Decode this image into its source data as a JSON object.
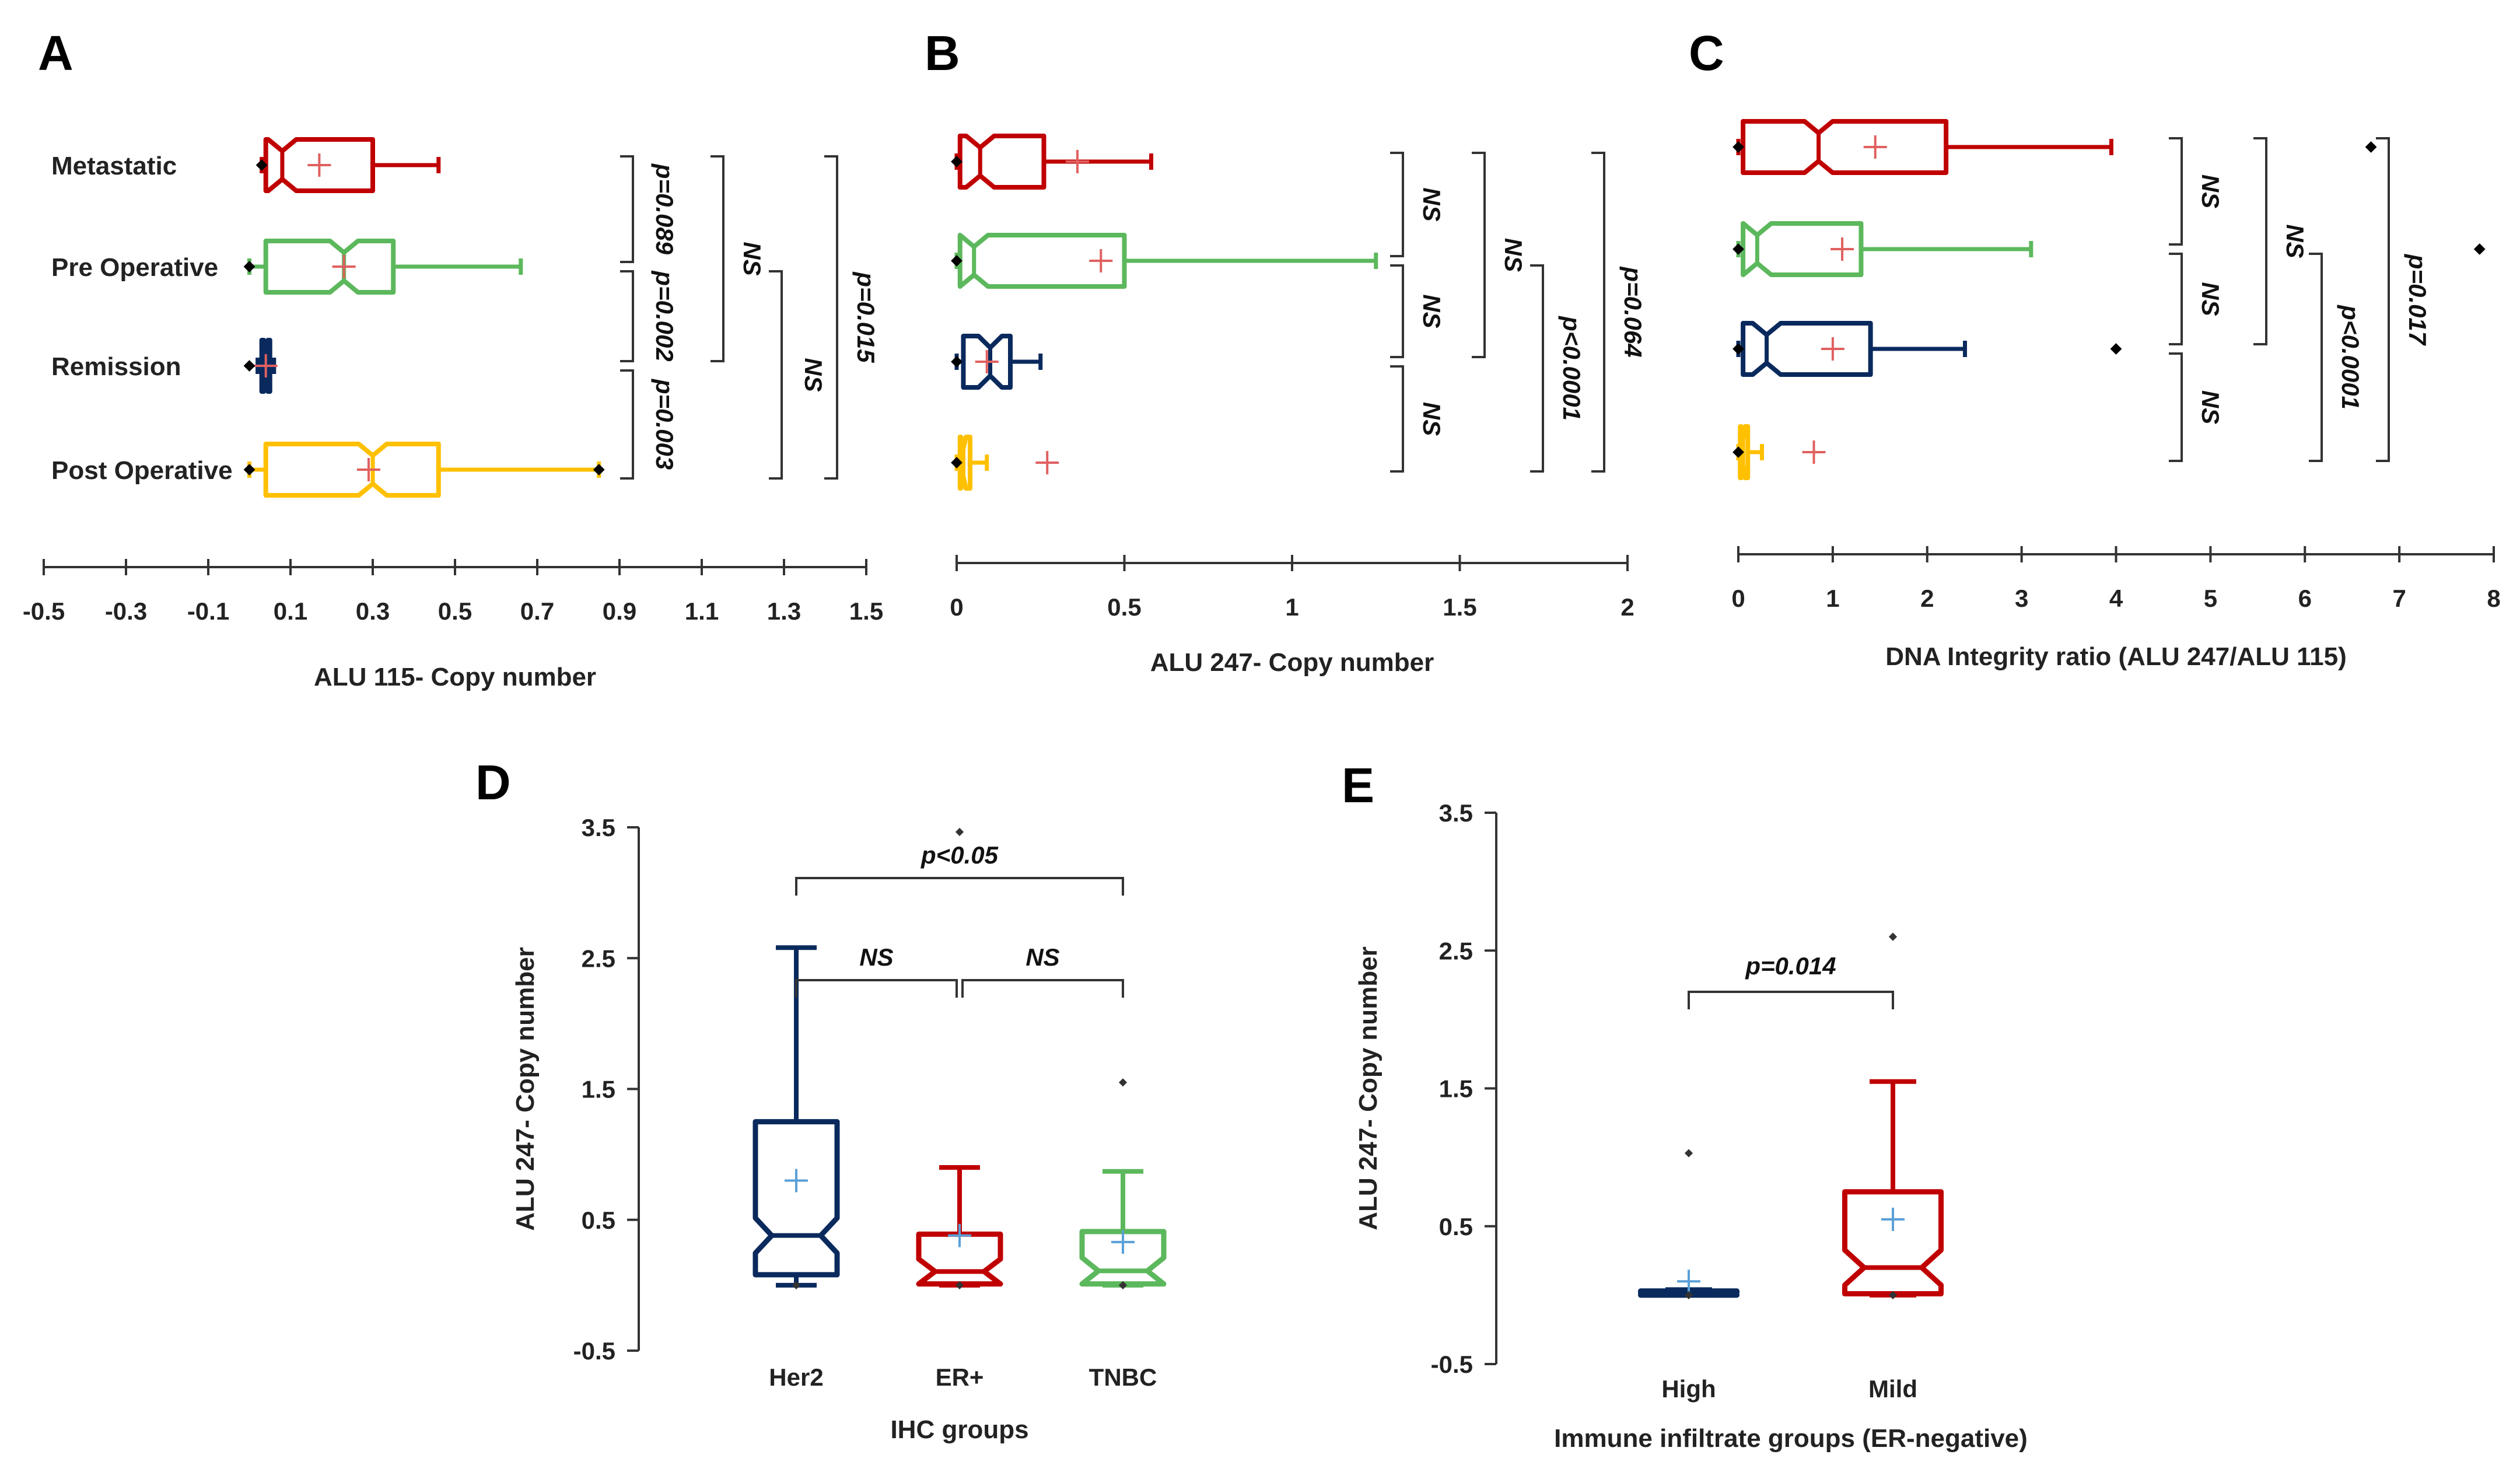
{
  "colors": {
    "red": "#c00000",
    "green": "#5cb85c",
    "navy": "#0a2a5e",
    "gold": "#ffc000",
    "mean_red": "#e06060",
    "mean_blue": "#5aa0d8",
    "axis": "#333333"
  },
  "chart_data": [
    {
      "panel": "A",
      "type": "boxplot",
      "orientation": "horizontal",
      "xlabel": "ALU 115- Copy number",
      "xlim": [
        -0.5,
        1.5
      ],
      "ticks": [
        "-0.5",
        "-0.3",
        "-0.1",
        "0.1",
        "0.3",
        "0.5",
        "0.7",
        "0.9",
        "1.1",
        "1.3",
        "1.5"
      ],
      "categories": [
        "Metastatic",
        "Pre Operative",
        "Remission",
        "Post Operative"
      ],
      "boxes": [
        {
          "name": "Metastatic",
          "color": "red",
          "min": 0.03,
          "q1": 0.04,
          "median": 0.08,
          "q3": 0.3,
          "max": 0.46,
          "mean": 0.17,
          "outliers": [
            0.03
          ]
        },
        {
          "name": "Pre Operative",
          "color": "green",
          "min": 0.0,
          "q1": 0.04,
          "median": 0.23,
          "q3": 0.35,
          "max": 0.66,
          "mean": 0.23,
          "outliers": [
            0.0
          ]
        },
        {
          "name": "Remission",
          "color": "navy",
          "min": 0.02,
          "q1": 0.03,
          "median": 0.04,
          "q3": 0.05,
          "max": 0.06,
          "mean": 0.04,
          "outliers": [
            0.0
          ]
        },
        {
          "name": "Post Operative",
          "color": "gold",
          "min": 0.0,
          "q1": 0.04,
          "median": 0.3,
          "q3": 0.46,
          "max": 0.85,
          "mean": 0.29,
          "outliers": [
            0.0,
            0.85
          ]
        }
      ],
      "annotations": [
        {
          "text": "p=0.089",
          "from": 0,
          "to": 1
        },
        {
          "text": "p=0.002",
          "from": 1,
          "to": 2
        },
        {
          "text": "p=0.003",
          "from": 2,
          "to": 3
        },
        {
          "text": "NS",
          "from": 0,
          "to": 2
        },
        {
          "text": "NS",
          "from": 1,
          "to": 3
        },
        {
          "text": "p=0.015",
          "from": 0,
          "to": 3
        }
      ]
    },
    {
      "panel": "B",
      "type": "boxplot",
      "orientation": "horizontal",
      "xlabel": "ALU 247- Copy number",
      "xlim": [
        0,
        2
      ],
      "ticks": [
        "0",
        "0.5",
        "1",
        "1.5",
        "2"
      ],
      "boxes": [
        {
          "name": "Metastatic",
          "color": "red",
          "min": 0.0,
          "q1": 0.01,
          "median": 0.07,
          "q3": 0.26,
          "max": 0.58,
          "mean": 0.36,
          "outliers": [
            0.0
          ]
        },
        {
          "name": "Pre Operative",
          "color": "green",
          "min": 0.0,
          "q1": 0.01,
          "median": 0.04,
          "q3": 0.5,
          "max": 1.25,
          "mean": 0.43,
          "outliers": [
            0.0
          ]
        },
        {
          "name": "Remission",
          "color": "navy",
          "min": 0.0,
          "q1": 0.02,
          "median": 0.1,
          "q3": 0.16,
          "max": 0.25,
          "mean": 0.09,
          "outliers": [
            0.0
          ]
        },
        {
          "name": "Post Operative",
          "color": "gold",
          "min": 0.0,
          "q1": 0.01,
          "median": 0.02,
          "q3": 0.04,
          "max": 0.09,
          "mean": 0.27,
          "outliers": [
            0.0
          ]
        }
      ],
      "annotations": [
        {
          "text": "NS",
          "from": 0,
          "to": 1
        },
        {
          "text": "NS",
          "from": 1,
          "to": 2
        },
        {
          "text": "NS",
          "from": 2,
          "to": 3
        },
        {
          "text": "NS",
          "from": 0,
          "to": 2
        },
        {
          "text": "p<0.0001",
          "from": 1,
          "to": 3
        },
        {
          "text": "p=0.064",
          "from": 0,
          "to": 3
        }
      ]
    },
    {
      "panel": "C",
      "type": "boxplot",
      "orientation": "horizontal",
      "xlabel": "DNA Integrity ratio (ALU 247/ALU 115)",
      "xlim": [
        0,
        8
      ],
      "ticks": [
        "0",
        "1",
        "2",
        "3",
        "4",
        "5",
        "6",
        "7",
        "8"
      ],
      "boxes": [
        {
          "name": "Metastatic",
          "color": "red",
          "min": 0.0,
          "q1": 0.05,
          "median": 0.85,
          "q3": 2.2,
          "max": 3.95,
          "mean": 1.45,
          "outliers": [
            0.0,
            6.7
          ]
        },
        {
          "name": "Pre Operative",
          "color": "green",
          "min": 0.0,
          "q1": 0.05,
          "median": 0.2,
          "q3": 1.3,
          "max": 3.1,
          "mean": 1.1,
          "outliers": [
            0.0,
            7.85
          ]
        },
        {
          "name": "Remission",
          "color": "navy",
          "min": 0.0,
          "q1": 0.05,
          "median": 0.3,
          "q3": 1.4,
          "max": 2.4,
          "mean": 1.0,
          "outliers": [
            0.0,
            4.0
          ]
        },
        {
          "name": "Post Operative",
          "color": "gold",
          "min": 0.0,
          "q1": 0.02,
          "median": 0.05,
          "q3": 0.1,
          "max": 0.25,
          "mean": 0.8,
          "outliers": [
            0.0
          ]
        }
      ],
      "annotations": [
        {
          "text": "NS",
          "from": 0,
          "to": 1
        },
        {
          "text": "NS",
          "from": 1,
          "to": 2
        },
        {
          "text": "NS",
          "from": 2,
          "to": 3
        },
        {
          "text": "NS",
          "from": 0,
          "to": 2
        },
        {
          "text": "p<0.0001",
          "from": 1,
          "to": 3
        },
        {
          "text": "p=0.017",
          "from": 0,
          "to": 3
        }
      ]
    },
    {
      "panel": "D",
      "type": "boxplot",
      "orientation": "vertical",
      "xlabel": "IHC groups",
      "ylabel": "ALU 247- Copy number",
      "ylim": [
        -0.5,
        3.5
      ],
      "ticks": [
        "-0.5",
        "0.5",
        "1.5",
        "2.5",
        "3.5"
      ],
      "categories": [
        "Her2",
        "ER+",
        "TNBC"
      ],
      "boxes": [
        {
          "name": "Her2",
          "color": "navy",
          "min": 0.0,
          "q1": 0.08,
          "median": 0.38,
          "q3": 1.25,
          "max": 2.58,
          "mean": 0.8,
          "outliers": [
            0.0
          ]
        },
        {
          "name": "ER+",
          "color": "red",
          "min": 0.0,
          "q1": 0.01,
          "median": 0.06,
          "q3": 0.39,
          "max": 0.9,
          "mean": 0.38,
          "outliers": [
            0.0
          ]
        },
        {
          "name": "TNBC",
          "color": "green",
          "min": 0.0,
          "q1": 0.01,
          "median": 0.06,
          "q3": 0.41,
          "max": 0.87,
          "mean": 0.33,
          "outliers": [
            0.0,
            1.55
          ]
        }
      ],
      "extra_points": [
        {
          "category": "ER+",
          "value": 3.5
        }
      ],
      "annotations": [
        {
          "text": "p<0.05",
          "from": 0,
          "to": 2
        },
        {
          "text": "NS",
          "from": 0,
          "to": 1
        },
        {
          "text": "NS",
          "from": 1,
          "to": 2
        }
      ]
    },
    {
      "panel": "E",
      "type": "boxplot",
      "orientation": "vertical",
      "xlabel": "Immune infiltrate groups (ER-negative)",
      "ylabel": "ALU 247- Copy number",
      "ylim": [
        -0.5,
        3.5
      ],
      "ticks": [
        "-0.5",
        "0.5",
        "1.5",
        "2.5",
        "3.5"
      ],
      "categories": [
        "High",
        "Mild"
      ],
      "boxes": [
        {
          "name": "High",
          "color": "navy",
          "min": 0.0,
          "q1": 0.0,
          "median": 0.01,
          "q3": 0.03,
          "max": 0.04,
          "mean": 0.1,
          "outliers": [
            1.03,
            0.0
          ]
        },
        {
          "name": "Mild",
          "color": "red",
          "min": 0.0,
          "q1": 0.01,
          "median": 0.2,
          "q3": 0.75,
          "max": 1.55,
          "mean": 0.55,
          "outliers": [
            2.6,
            0.0
          ]
        }
      ],
      "annotations": [
        {
          "text": "p=0.014",
          "from": 0,
          "to": 1
        }
      ]
    }
  ]
}
